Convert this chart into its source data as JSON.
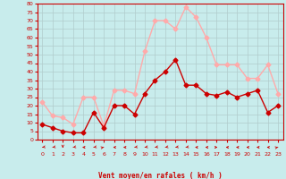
{
  "title": "",
  "xlabel": "Vent moyen/en rafales ( km/h )",
  "ylabel": "",
  "background_color": "#c8ecec",
  "grid_color": "#b0cccc",
  "x": [
    0,
    1,
    2,
    3,
    4,
    5,
    6,
    7,
    8,
    9,
    10,
    11,
    12,
    13,
    14,
    15,
    16,
    17,
    18,
    19,
    20,
    21,
    22,
    23
  ],
  "vent_moyen": [
    9,
    7,
    5,
    4,
    4,
    16,
    7,
    20,
    20,
    15,
    27,
    35,
    40,
    47,
    32,
    32,
    27,
    26,
    28,
    25,
    27,
    29,
    16,
    20
  ],
  "vent_rafales": [
    22,
    14,
    13,
    9,
    25,
    25,
    8,
    29,
    29,
    27,
    52,
    70,
    70,
    65,
    78,
    72,
    60,
    44,
    44,
    44,
    36,
    36,
    44,
    27
  ],
  "color_moyen": "#cc0000",
  "color_rafales": "#ffaaaa",
  "ylim": [
    0,
    80
  ],
  "yticks": [
    0,
    5,
    10,
    15,
    20,
    25,
    30,
    35,
    40,
    45,
    50,
    55,
    60,
    65,
    70,
    75,
    80
  ],
  "marker_size": 2.5,
  "line_width": 1.0,
  "wind_dirs": [
    225,
    225,
    180,
    225,
    270,
    225,
    45,
    270,
    270,
    225,
    225,
    225,
    225,
    225,
    225,
    270,
    270,
    90,
    270,
    270,
    270,
    270,
    270,
    45
  ]
}
